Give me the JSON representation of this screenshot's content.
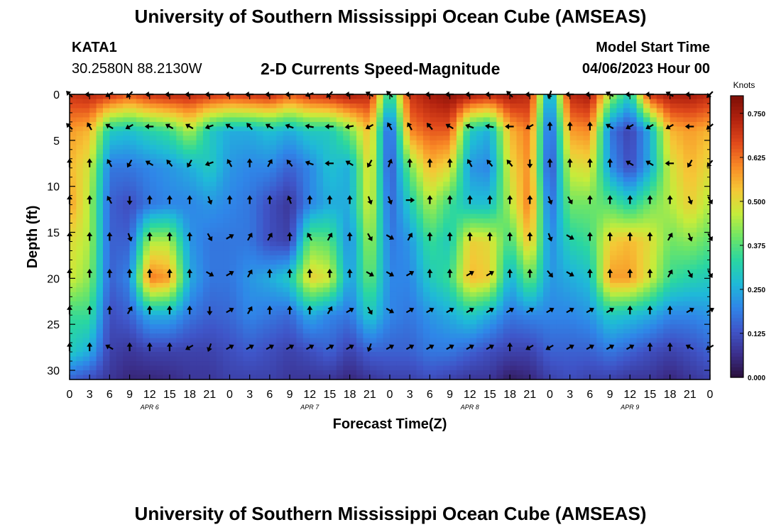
{
  "header": {
    "title": "University of Southern Mississippi Ocean Cube (AMSEAS)",
    "station_id": "KATA1",
    "station_coords": "30.2580N  88.2130W",
    "plot_name": "2-D Currents Speed-Magnitude",
    "model_start_label": "Model Start Time",
    "model_start_value": "04/06/2023 Hour 00"
  },
  "footer": {
    "title": "University of Southern Mississippi Ocean Cube (AMSEAS)"
  },
  "chart_data": {
    "type": "heatmap",
    "title": "2-D Currents Speed-Magnitude",
    "xlabel": "Forecast Time(Z)",
    "ylabel": "Depth (ft)",
    "x_ticks": [
      "0",
      "3",
      "6",
      "9",
      "12",
      "15",
      "18",
      "21",
      "0",
      "3",
      "6",
      "9",
      "12",
      "15",
      "18",
      "21",
      "0",
      "3",
      "6",
      "9",
      "12",
      "15",
      "18",
      "21",
      "0",
      "3",
      "6",
      "9",
      "12",
      "15",
      "18",
      "21",
      "0"
    ],
    "x_range_hours": [
      0,
      96
    ],
    "date_labels": [
      {
        "label": "APR 6",
        "hour": 12
      },
      {
        "label": "APR 7",
        "hour": 36
      },
      {
        "label": "APR 8",
        "hour": 60
      },
      {
        "label": "APR 9",
        "hour": 84
      }
    ],
    "y_ticks": [
      "0",
      "5",
      "10",
      "15",
      "20",
      "25",
      "30"
    ],
    "y_range_ft": [
      0,
      31
    ],
    "colorbar": {
      "label": "Knots",
      "range": [
        0.0,
        0.8
      ],
      "ticks": [
        "0.000",
        "0.125",
        "0.250",
        "0.375",
        "0.500",
        "0.625",
        "0.750"
      ],
      "colormap": [
        "#2a0f3a",
        "#3b2f8c",
        "#3f55c8",
        "#2f86e8",
        "#1fb9d8",
        "#29d6a2",
        "#6ee566",
        "#c6ec3b",
        "#f5c736",
        "#f98a26",
        "#e0491b",
        "#b2220f",
        "#7d0f06"
      ]
    },
    "speed_profiles": {
      "depths_ft": [
        0,
        4,
        8,
        12,
        16,
        20,
        24,
        28,
        31
      ],
      "hours": [
        0,
        3,
        6,
        9,
        12,
        15,
        18,
        21,
        24,
        27,
        30,
        33,
        36,
        39,
        42,
        45,
        48,
        51,
        54,
        57,
        60,
        63,
        66,
        69,
        72,
        75,
        78,
        81,
        84,
        87,
        90,
        93,
        96
      ],
      "values": [
        [
          0.7,
          0.58,
          0.55,
          0.58,
          0.5,
          0.48,
          0.35,
          0.3,
          0.15
        ],
        [
          0.72,
          0.55,
          0.48,
          0.45,
          0.45,
          0.42,
          0.35,
          0.25,
          0.12
        ],
        [
          0.7,
          0.3,
          0.18,
          0.15,
          0.15,
          0.15,
          0.12,
          0.1,
          0.08
        ],
        [
          0.65,
          0.28,
          0.18,
          0.12,
          0.15,
          0.2,
          0.15,
          0.08,
          0.05
        ],
        [
          0.7,
          0.32,
          0.2,
          0.18,
          0.45,
          0.62,
          0.25,
          0.1,
          0.05
        ],
        [
          0.72,
          0.35,
          0.22,
          0.2,
          0.45,
          0.58,
          0.25,
          0.1,
          0.06
        ],
        [
          0.72,
          0.45,
          0.25,
          0.2,
          0.22,
          0.25,
          0.18,
          0.1,
          0.08
        ],
        [
          0.7,
          0.3,
          0.3,
          0.22,
          0.18,
          0.18,
          0.15,
          0.1,
          0.08
        ],
        [
          0.68,
          0.25,
          0.22,
          0.2,
          0.18,
          0.18,
          0.16,
          0.12,
          0.1
        ],
        [
          0.7,
          0.25,
          0.2,
          0.18,
          0.18,
          0.22,
          0.2,
          0.14,
          0.1
        ],
        [
          0.72,
          0.28,
          0.2,
          0.12,
          0.12,
          0.25,
          0.18,
          0.12,
          0.1
        ],
        [
          0.65,
          0.25,
          0.15,
          0.08,
          0.1,
          0.3,
          0.16,
          0.1,
          0.08
        ],
        [
          0.7,
          0.3,
          0.2,
          0.2,
          0.4,
          0.52,
          0.25,
          0.12,
          0.08
        ],
        [
          0.72,
          0.3,
          0.28,
          0.25,
          0.38,
          0.48,
          0.2,
          0.15,
          0.08
        ],
        [
          0.75,
          0.4,
          0.25,
          0.25,
          0.2,
          0.22,
          0.18,
          0.1,
          0.05
        ],
        [
          0.72,
          0.55,
          0.52,
          0.5,
          0.45,
          0.4,
          0.3,
          0.15,
          0.08
        ],
        [
          0.3,
          0.12,
          0.12,
          0.15,
          0.18,
          0.2,
          0.2,
          0.15,
          0.1
        ],
        [
          0.7,
          0.6,
          0.4,
          0.3,
          0.22,
          0.2,
          0.18,
          0.15,
          0.1
        ],
        [
          0.75,
          0.65,
          0.55,
          0.45,
          0.35,
          0.3,
          0.22,
          0.18,
          0.12
        ],
        [
          0.78,
          0.65,
          0.5,
          0.35,
          0.3,
          0.35,
          0.25,
          0.18,
          0.1
        ],
        [
          0.75,
          0.3,
          0.22,
          0.28,
          0.52,
          0.55,
          0.3,
          0.15,
          0.08
        ],
        [
          0.72,
          0.25,
          0.2,
          0.28,
          0.5,
          0.52,
          0.25,
          0.12,
          0.08
        ],
        [
          0.75,
          0.55,
          0.5,
          0.45,
          0.35,
          0.25,
          0.18,
          0.1,
          0.03
        ],
        [
          0.72,
          0.62,
          0.6,
          0.62,
          0.55,
          0.4,
          0.2,
          0.1,
          0.05
        ],
        [
          0.2,
          0.12,
          0.1,
          0.15,
          0.2,
          0.22,
          0.2,
          0.15,
          0.1
        ],
        [
          0.72,
          0.58,
          0.48,
          0.4,
          0.32,
          0.25,
          0.2,
          0.15,
          0.12
        ],
        [
          0.75,
          0.6,
          0.5,
          0.4,
          0.35,
          0.28,
          0.22,
          0.15,
          0.1
        ],
        [
          0.45,
          0.18,
          0.22,
          0.38,
          0.52,
          0.58,
          0.3,
          0.18,
          0.1
        ],
        [
          0.3,
          0.1,
          0.12,
          0.32,
          0.55,
          0.58,
          0.28,
          0.15,
          0.08
        ],
        [
          0.7,
          0.25,
          0.25,
          0.4,
          0.5,
          0.48,
          0.25,
          0.12,
          0.08
        ],
        [
          0.75,
          0.55,
          0.48,
          0.45,
          0.4,
          0.35,
          0.2,
          0.1,
          0.05
        ],
        [
          0.75,
          0.58,
          0.55,
          0.52,
          0.42,
          0.32,
          0.2,
          0.12,
          0.08
        ],
        [
          0.72,
          0.55,
          0.5,
          0.45,
          0.38,
          0.3,
          0.22,
          0.15,
          0.1
        ]
      ]
    },
    "vectors": {
      "depths_ft": [
        0,
        3.5,
        7.5,
        11.5,
        15.5,
        19.5,
        23.5,
        27.5
      ],
      "hours": [
        0,
        3,
        6,
        9,
        12,
        15,
        18,
        21,
        24,
        27,
        30,
        33,
        36,
        39,
        42,
        45,
        48,
        51,
        54,
        57,
        60,
        63,
        66,
        69,
        72,
        75,
        78,
        81,
        84,
        87,
        90,
        93,
        96
      ],
      "directions_deg": [
        [
          315,
          270,
          240,
          225,
          270,
          270,
          270,
          270,
          270,
          270,
          270,
          270,
          250,
          225,
          270,
          300,
          315,
          270,
          270,
          270,
          270,
          270,
          315,
          270,
          200,
          270,
          270,
          300,
          270,
          270,
          300,
          270,
          225
        ],
        [
          315,
          330,
          300,
          240,
          270,
          300,
          300,
          250,
          300,
          320,
          300,
          290,
          280,
          270,
          260,
          240,
          330,
          330,
          320,
          300,
          290,
          280,
          270,
          240,
          0,
          0,
          0,
          300,
          240,
          240,
          240,
          270,
          230
        ],
        [
          0,
          0,
          330,
          210,
          300,
          320,
          210,
          250,
          330,
          0,
          30,
          320,
          290,
          270,
          300,
          210,
          20,
          0,
          0,
          0,
          330,
          320,
          320,
          180,
          0,
          0,
          0,
          0,
          300,
          300,
          270,
          210,
          220
        ],
        [
          0,
          0,
          330,
          180,
          0,
          0,
          0,
          160,
          0,
          0,
          0,
          340,
          0,
          0,
          0,
          160,
          160,
          90,
          0,
          0,
          0,
          0,
          0,
          0,
          160,
          150,
          0,
          0,
          0,
          0,
          0,
          160,
          150
        ],
        [
          0,
          0,
          0,
          160,
          0,
          0,
          0,
          150,
          60,
          30,
          30,
          0,
          330,
          30,
          0,
          150,
          120,
          30,
          0,
          0,
          0,
          0,
          0,
          0,
          160,
          120,
          0,
          0,
          0,
          0,
          30,
          160,
          150
        ],
        [
          0,
          0,
          0,
          0,
          0,
          0,
          0,
          120,
          60,
          30,
          0,
          0,
          0,
          0,
          0,
          120,
          120,
          60,
          0,
          0,
          60,
          60,
          0,
          0,
          140,
          120,
          0,
          0,
          0,
          0,
          30,
          150,
          150
        ],
        [
          0,
          0,
          0,
          30,
          0,
          0,
          0,
          180,
          60,
          30,
          0,
          0,
          0,
          30,
          60,
          150,
          120,
          60,
          60,
          60,
          60,
          60,
          60,
          60,
          60,
          60,
          60,
          60,
          0,
          0,
          0,
          60,
          60
        ],
        [
          0,
          0,
          300,
          0,
          0,
          0,
          240,
          200,
          60,
          60,
          60,
          60,
          60,
          60,
          60,
          200,
          60,
          60,
          60,
          60,
          60,
          60,
          0,
          240,
          240,
          60,
          60,
          60,
          60,
          0,
          0,
          300,
          240
        ]
      ]
    }
  }
}
